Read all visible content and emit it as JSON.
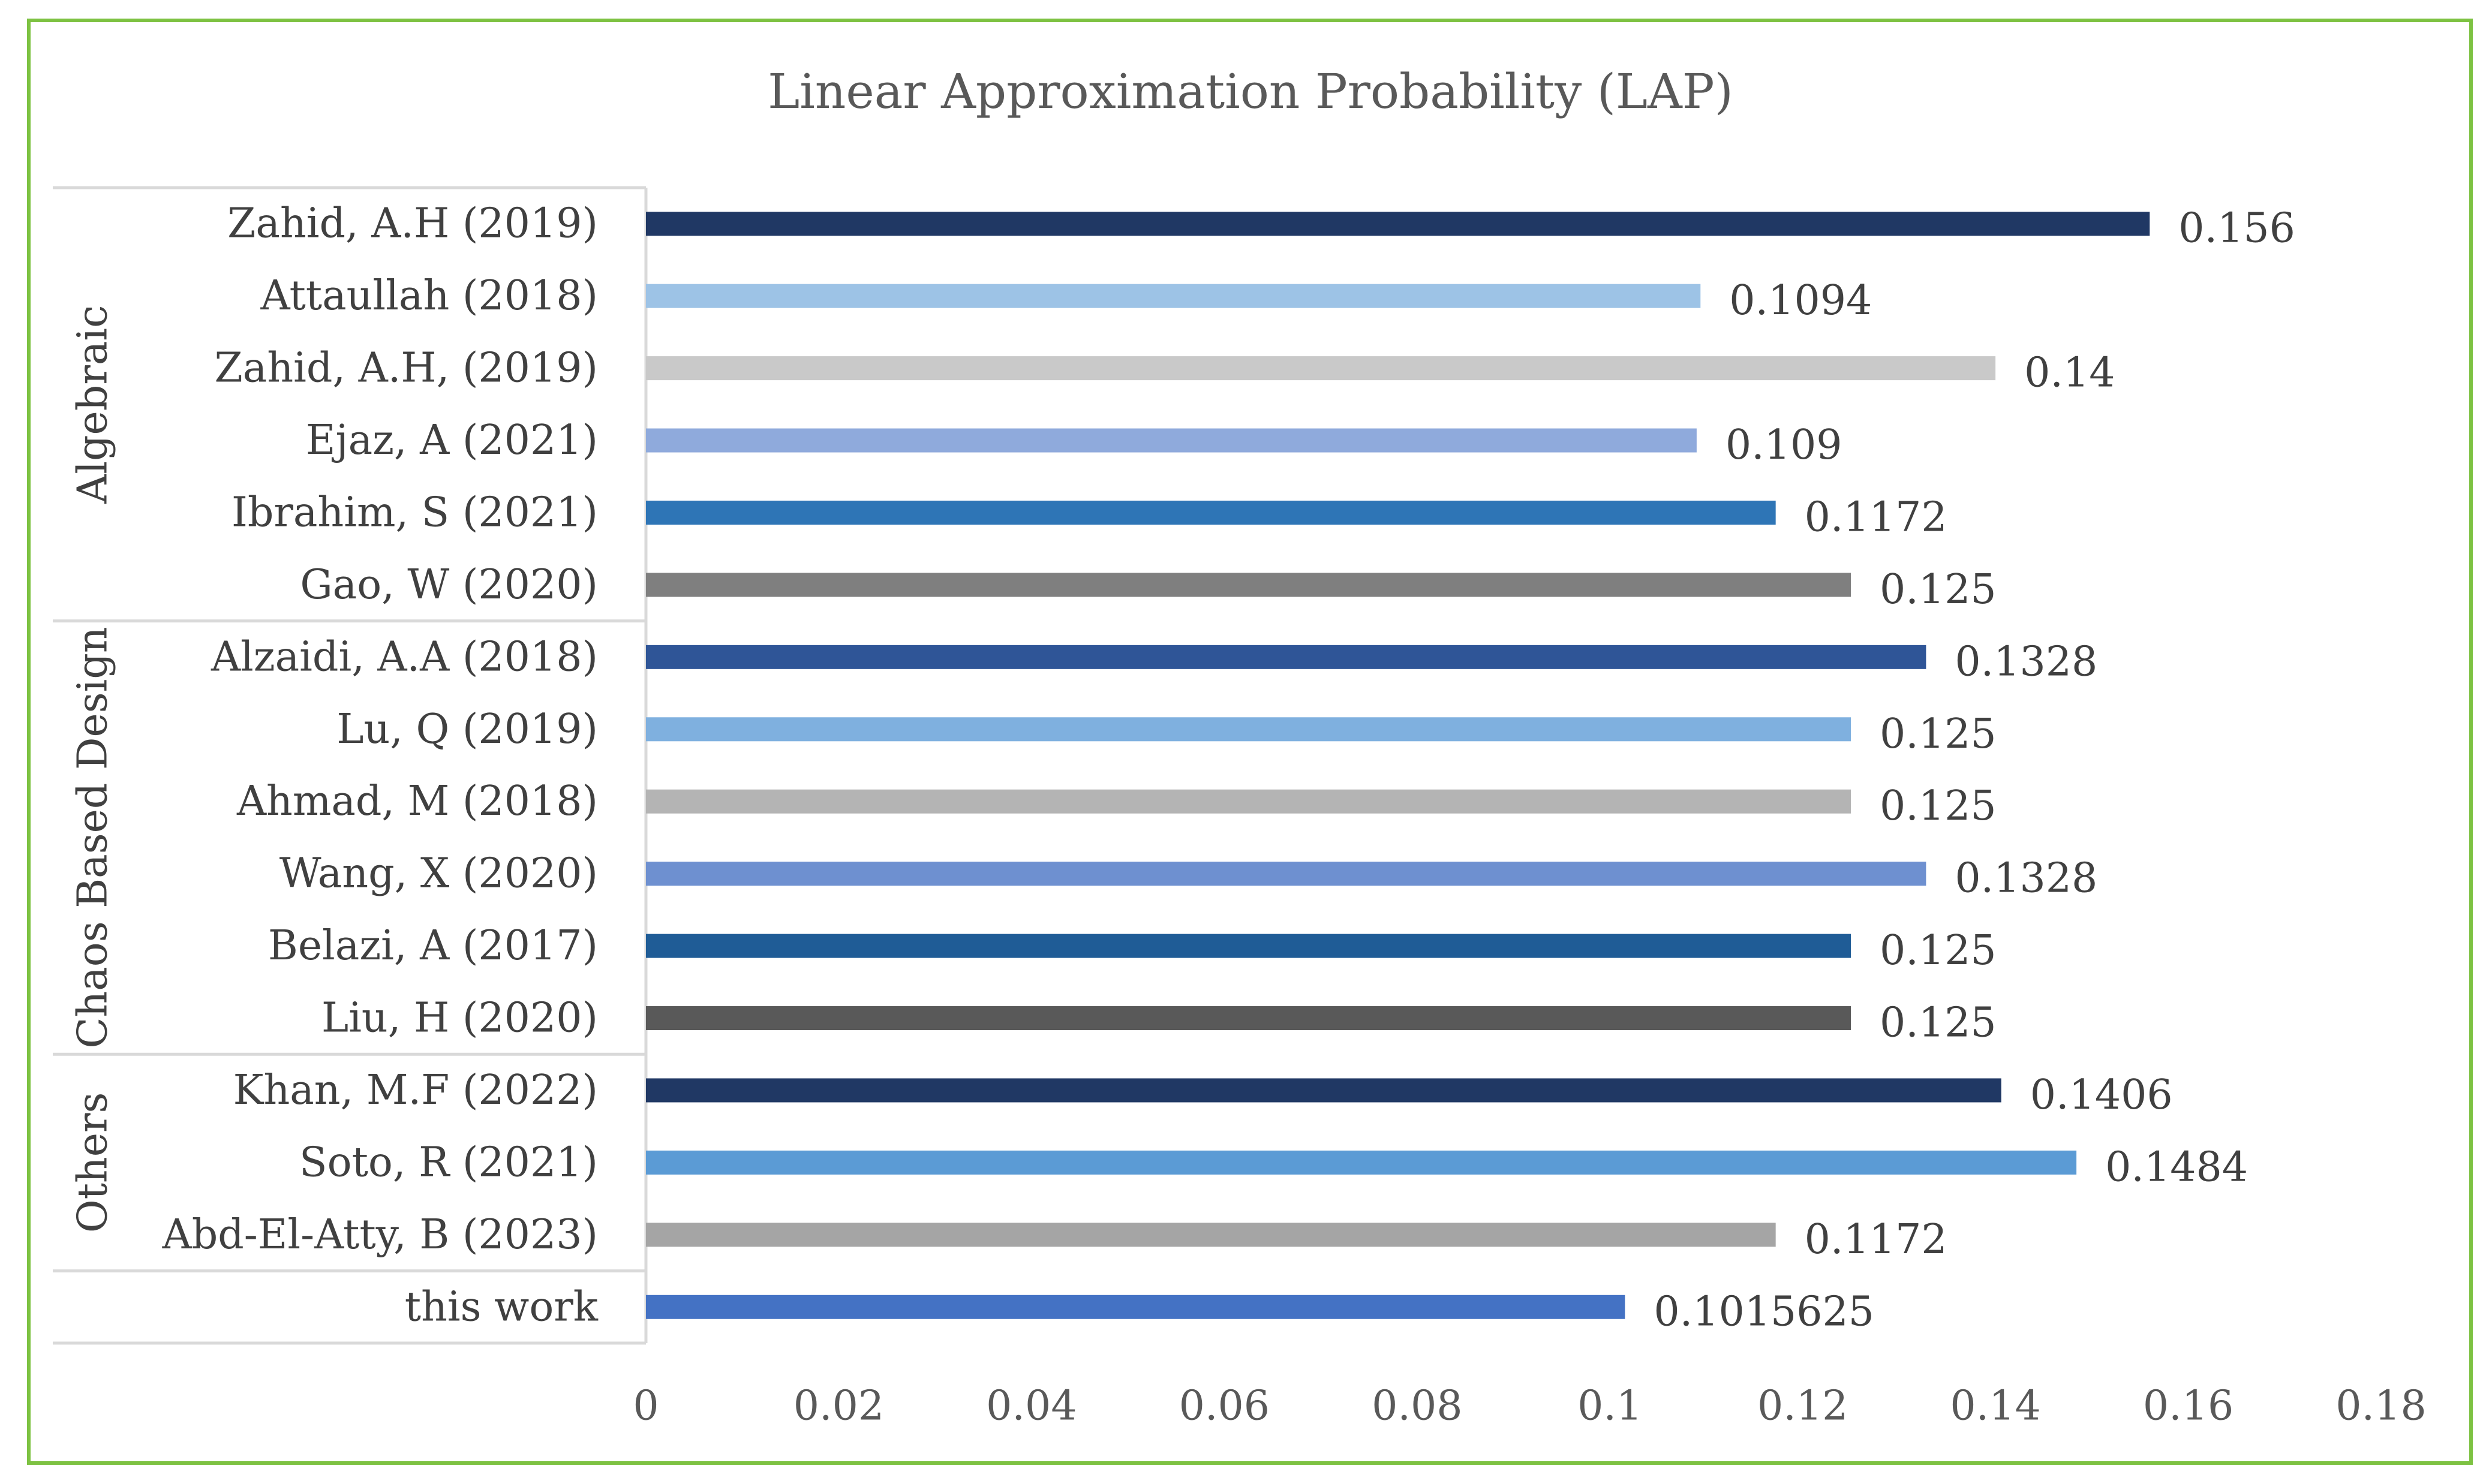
{
  "chart_data": {
    "type": "bar",
    "orientation": "horizontal",
    "title": "Linear Approximation Probability (LAP)",
    "xlabel": "",
    "ylabel": "",
    "xlim": [
      0,
      0.18
    ],
    "x_ticks": [
      0,
      0.02,
      0.04,
      0.06,
      0.08,
      0.1,
      0.12,
      0.14,
      0.16,
      0.18
    ],
    "x_tick_labels": [
      "0",
      "0.02",
      "0.04",
      "0.06",
      "0.08",
      "0.1",
      "0.12",
      "0.14",
      "0.16",
      "0.18"
    ],
    "grid": false,
    "legend": "none",
    "groups": [
      {
        "label": "Algebraic",
        "start": 0,
        "end": 5
      },
      {
        "label": "Chaos Based Design",
        "start": 6,
        "end": 11
      },
      {
        "label": "Others",
        "start": 12,
        "end": 14
      },
      {
        "label": "",
        "start": 15,
        "end": 15
      }
    ],
    "categories": [
      "Zahid, A.H (2019)",
      "Attaullah (2018)",
      "Zahid, A.H, (2019)",
      "Ejaz, A (2021)",
      "Ibrahim, S (2021)",
      "Gao, W (2020)",
      "Alzaidi, A.A (2018)",
      "Lu, Q (2019)",
      "Ahmad, M (2018)",
      "Wang, X (2020)",
      "Belazi, A (2017)",
      "Liu, H (2020)",
      "Khan, M.F (2022)",
      "Soto, R (2021)",
      "Abd-El-Atty, B (2023)",
      "this work"
    ],
    "values": [
      0.156,
      0.1094,
      0.14,
      0.109,
      0.1172,
      0.125,
      0.1328,
      0.125,
      0.125,
      0.1328,
      0.125,
      0.125,
      0.1406,
      0.1484,
      0.1172,
      0.1015625
    ],
    "value_labels": [
      "0.156",
      "0.1094",
      "0.14",
      "0.109",
      "0.1172",
      "0.125",
      "0.1328",
      "0.125",
      "0.125",
      "0.1328",
      "0.125",
      "0.125",
      "0.1406",
      "0.1484",
      "0.1172",
      "0.1015625"
    ],
    "bar_colors": [
      "#203864",
      "#9DC3E6",
      "#C9C9C9",
      "#8FAADC",
      "#2E75B6",
      "#7F7F7F",
      "#2F5597",
      "#7FB0DF",
      "#B4B4B4",
      "#6E90D0",
      "#1F5C96",
      "#595959",
      "#203864",
      "#5B9BD5",
      "#A5A5A5",
      "#4472C4"
    ]
  },
  "colors": {
    "frame": "#7DC242",
    "axis": "#D9D9D9",
    "text": "#404040"
  }
}
